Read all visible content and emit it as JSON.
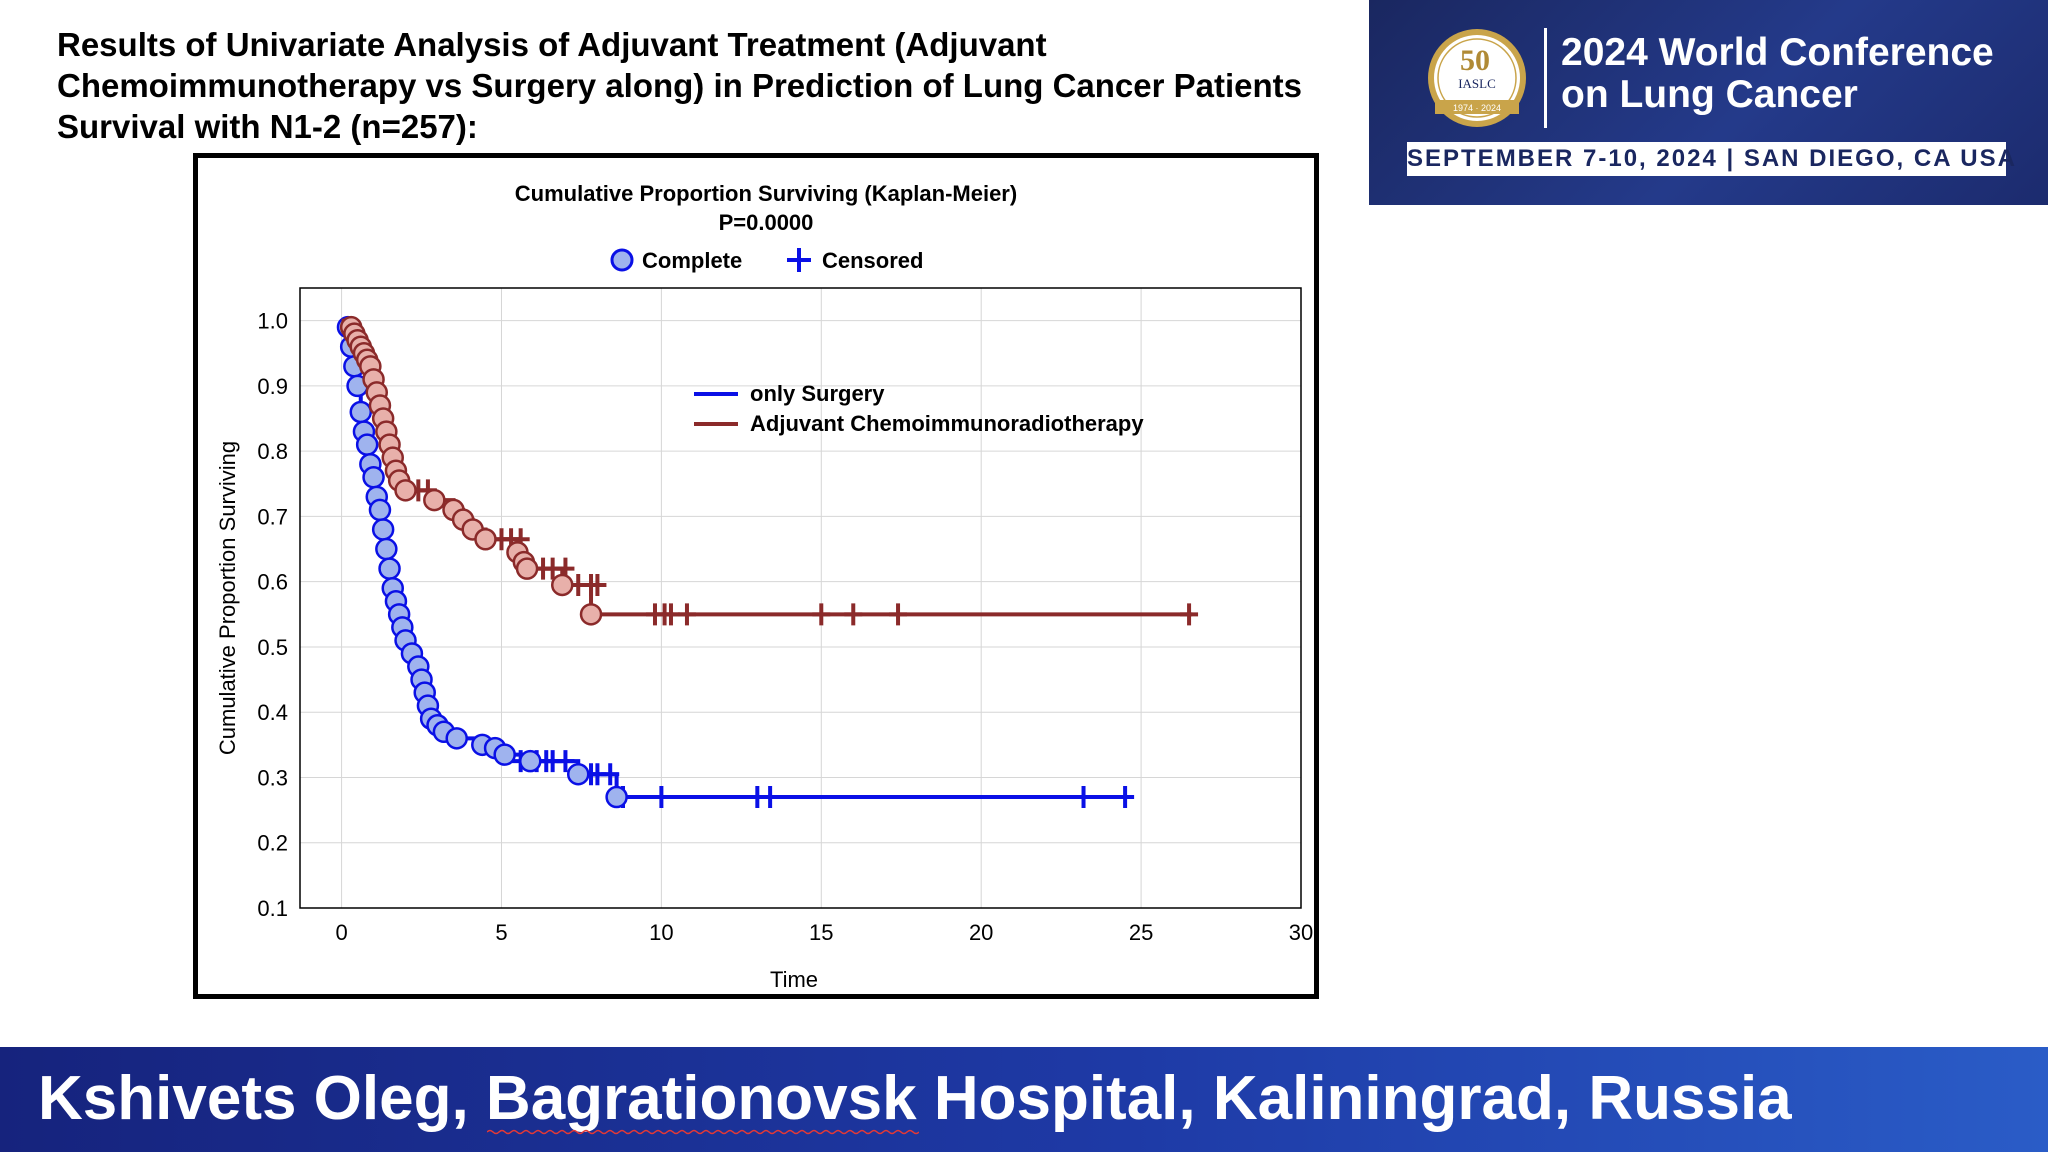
{
  "slide_title": "Results of Univariate Analysis of Adjuvant Treatment (Adjuvant Chemoimmunotherapy vs Surgery along) in Prediction of Lung Cancer Patients Survival with N1-2 (n=257):",
  "banner": {
    "logo_number": "50",
    "logo_text": "IASLC",
    "logo_years": "1974 · 2024",
    "line1": "2024 World Conference",
    "line2": "on Lung Cancer",
    "dates": "SEPTEMBER 7-10, 2024 | SAN DIEGO, CA USA",
    "colors": {
      "background": "#1c2b6e",
      "gold": "#c9a44a"
    }
  },
  "footer": {
    "text": "Kshivets Oleg, Bagrationovsk Hospital, Kaliningrad, Russia",
    "colors": {
      "background": "#1e3aa6"
    }
  },
  "chart_data": {
    "type": "line",
    "title": "Cumulative Proportion Surviving (Kaplan-Meier)",
    "subtitle": "P=0.0000",
    "xlabel": "Time",
    "ylabel": "Cumulative Proportion Surviving",
    "xlim": [
      -1.3,
      30
    ],
    "ylim": [
      0.1,
      1.05
    ],
    "xticks": [
      0,
      5,
      10,
      15,
      20,
      25,
      30
    ],
    "yticks": [
      0.1,
      0.2,
      0.3,
      0.4,
      0.5,
      0.6,
      0.7,
      0.8,
      0.9,
      1.0
    ],
    "grid": true,
    "marker_legend": [
      {
        "label": "Complete",
        "marker": "circle"
      },
      {
        "label": "Censored",
        "marker": "plus"
      }
    ],
    "legend_position": "upper-right",
    "series": [
      {
        "name": "only Surgery",
        "color": "#0a10e6",
        "marker_fill": "#9fb3ee",
        "curve": [
          [
            0,
            1.0
          ],
          [
            0.2,
            0.99
          ],
          [
            0.3,
            0.96
          ],
          [
            0.4,
            0.93
          ],
          [
            0.5,
            0.9
          ],
          [
            0.6,
            0.86
          ],
          [
            0.7,
            0.83
          ],
          [
            0.8,
            0.81
          ],
          [
            0.9,
            0.78
          ],
          [
            1.0,
            0.76
          ],
          [
            1.1,
            0.73
          ],
          [
            1.2,
            0.71
          ],
          [
            1.3,
            0.68
          ],
          [
            1.4,
            0.65
          ],
          [
            1.5,
            0.62
          ],
          [
            1.6,
            0.59
          ],
          [
            1.7,
            0.57
          ],
          [
            1.8,
            0.55
          ],
          [
            1.9,
            0.53
          ],
          [
            2.0,
            0.51
          ],
          [
            2.2,
            0.49
          ],
          [
            2.4,
            0.47
          ],
          [
            2.5,
            0.45
          ],
          [
            2.6,
            0.43
          ],
          [
            2.7,
            0.41
          ],
          [
            2.8,
            0.39
          ],
          [
            3.0,
            0.38
          ],
          [
            3.2,
            0.37
          ],
          [
            3.6,
            0.36
          ],
          [
            4.4,
            0.35
          ],
          [
            4.8,
            0.345
          ],
          [
            5.1,
            0.335
          ],
          [
            5.9,
            0.325
          ],
          [
            7.4,
            0.305
          ],
          [
            8.6,
            0.27
          ],
          [
            24.6,
            0.27
          ]
        ],
        "events": [
          [
            0.2,
            0.99
          ],
          [
            0.3,
            0.96
          ],
          [
            0.4,
            0.93
          ],
          [
            0.5,
            0.9
          ],
          [
            0.6,
            0.86
          ],
          [
            0.7,
            0.83
          ],
          [
            0.8,
            0.81
          ],
          [
            0.9,
            0.78
          ],
          [
            1.0,
            0.76
          ],
          [
            1.1,
            0.73
          ],
          [
            1.2,
            0.71
          ],
          [
            1.3,
            0.68
          ],
          [
            1.4,
            0.65
          ],
          [
            1.5,
            0.62
          ],
          [
            1.6,
            0.59
          ],
          [
            1.7,
            0.57
          ],
          [
            1.8,
            0.55
          ],
          [
            1.9,
            0.53
          ],
          [
            2.0,
            0.51
          ],
          [
            2.2,
            0.49
          ],
          [
            2.4,
            0.47
          ],
          [
            2.5,
            0.45
          ],
          [
            2.6,
            0.43
          ],
          [
            2.7,
            0.41
          ],
          [
            2.8,
            0.39
          ],
          [
            3.0,
            0.38
          ],
          [
            3.2,
            0.37
          ],
          [
            3.6,
            0.36
          ],
          [
            4.4,
            0.35
          ],
          [
            4.8,
            0.345
          ],
          [
            5.1,
            0.335
          ],
          [
            5.9,
            0.325
          ],
          [
            7.4,
            0.305
          ],
          [
            8.6,
            0.27
          ]
        ],
        "censored": [
          [
            5.6,
            0.325
          ],
          [
            6.1,
            0.325
          ],
          [
            6.4,
            0.325
          ],
          [
            6.6,
            0.325
          ],
          [
            7.0,
            0.325
          ],
          [
            7.8,
            0.305
          ],
          [
            8.0,
            0.305
          ],
          [
            8.4,
            0.305
          ],
          [
            8.8,
            0.27
          ],
          [
            10.0,
            0.27
          ],
          [
            13.0,
            0.27
          ],
          [
            13.4,
            0.27
          ],
          [
            23.2,
            0.27
          ],
          [
            24.5,
            0.27
          ]
        ]
      },
      {
        "name": "Adjuvant Chemoimmunoradiotherapy",
        "color": "#8b2a2a",
        "marker_fill": "#e8b0aa",
        "curve": [
          [
            0,
            1.0
          ],
          [
            0.3,
            0.99
          ],
          [
            0.4,
            0.98
          ],
          [
            0.5,
            0.97
          ],
          [
            0.6,
            0.96
          ],
          [
            0.7,
            0.95
          ],
          [
            0.8,
            0.94
          ],
          [
            0.9,
            0.93
          ],
          [
            1.0,
            0.91
          ],
          [
            1.1,
            0.89
          ],
          [
            1.2,
            0.87
          ],
          [
            1.3,
            0.85
          ],
          [
            1.4,
            0.83
          ],
          [
            1.5,
            0.81
          ],
          [
            1.6,
            0.79
          ],
          [
            1.7,
            0.77
          ],
          [
            1.8,
            0.755
          ],
          [
            2.0,
            0.74
          ],
          [
            2.9,
            0.725
          ],
          [
            3.5,
            0.71
          ],
          [
            3.8,
            0.695
          ],
          [
            4.1,
            0.68
          ],
          [
            4.5,
            0.665
          ],
          [
            5.5,
            0.645
          ],
          [
            5.7,
            0.63
          ],
          [
            5.8,
            0.62
          ],
          [
            6.9,
            0.595
          ],
          [
            7.8,
            0.55
          ],
          [
            26.6,
            0.55
          ]
        ],
        "events": [
          [
            0.3,
            0.99
          ],
          [
            0.4,
            0.98
          ],
          [
            0.5,
            0.97
          ],
          [
            0.6,
            0.96
          ],
          [
            0.7,
            0.95
          ],
          [
            0.8,
            0.94
          ],
          [
            0.9,
            0.93
          ],
          [
            1.0,
            0.91
          ],
          [
            1.1,
            0.89
          ],
          [
            1.2,
            0.87
          ],
          [
            1.3,
            0.85
          ],
          [
            1.4,
            0.83
          ],
          [
            1.5,
            0.81
          ],
          [
            1.6,
            0.79
          ],
          [
            1.7,
            0.77
          ],
          [
            1.8,
            0.755
          ],
          [
            2.0,
            0.74
          ],
          [
            2.9,
            0.725
          ],
          [
            3.5,
            0.71
          ],
          [
            3.8,
            0.695
          ],
          [
            4.1,
            0.68
          ],
          [
            4.5,
            0.665
          ],
          [
            5.5,
            0.645
          ],
          [
            5.7,
            0.63
          ],
          [
            5.8,
            0.62
          ],
          [
            6.9,
            0.595
          ],
          [
            7.8,
            0.55
          ]
        ],
        "censored": [
          [
            2.4,
            0.74
          ],
          [
            2.7,
            0.74
          ],
          [
            5.0,
            0.665
          ],
          [
            5.3,
            0.665
          ],
          [
            5.6,
            0.665
          ],
          [
            6.3,
            0.62
          ],
          [
            6.6,
            0.62
          ],
          [
            7.0,
            0.62
          ],
          [
            7.4,
            0.595
          ],
          [
            7.8,
            0.595
          ],
          [
            8.0,
            0.595
          ],
          [
            9.8,
            0.55
          ],
          [
            10.1,
            0.55
          ],
          [
            10.3,
            0.55
          ],
          [
            10.8,
            0.55
          ],
          [
            15.0,
            0.55
          ],
          [
            16.0,
            0.55
          ],
          [
            17.4,
            0.55
          ],
          [
            26.5,
            0.55
          ]
        ]
      }
    ]
  }
}
